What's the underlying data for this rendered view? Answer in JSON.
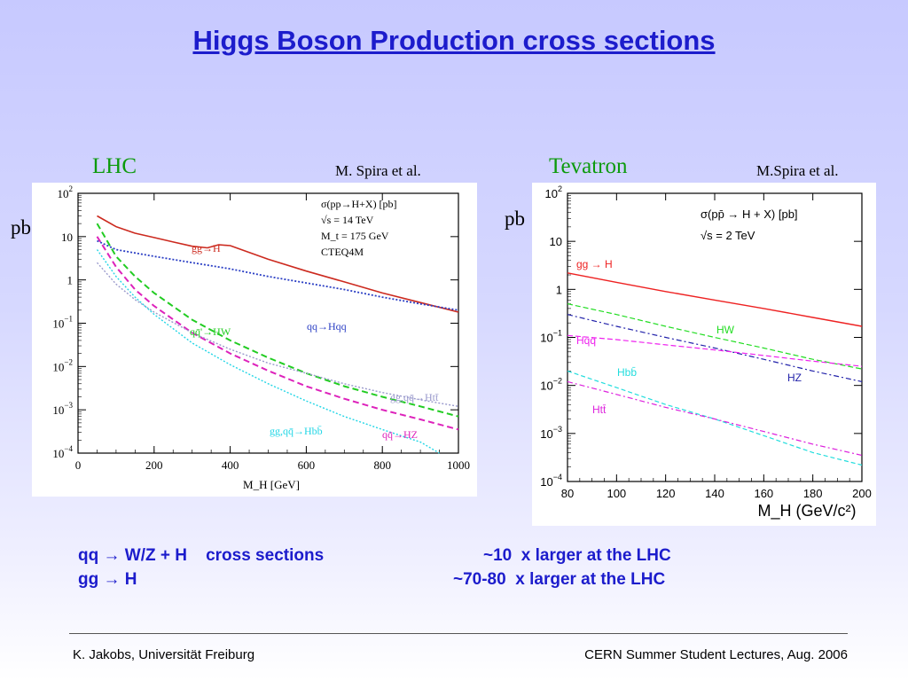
{
  "title": "Higgs Boson Production cross sections",
  "lhc": {
    "label": "LHC",
    "author": "M. Spira et al.",
    "ylabel": "pb"
  },
  "tevatron": {
    "label": "Tevatron",
    "author": "M.Spira et al.",
    "ylabel": "pb"
  },
  "bullets": [
    {
      "left": "qq → W/Z + H    cross sections",
      "right": "~10  x larger at the LHC"
    },
    {
      "left": "gg → H",
      "right": "~70-80  x larger at the LHC"
    }
  ],
  "footer": {
    "left": "K. Jakobs,  Universität Freiburg",
    "right": "CERN Summer Student Lectures,  Aug. 2006"
  },
  "colors": {
    "title": "#1c1ccc",
    "labels": "#0c9a0c"
  },
  "chart_data": [
    {
      "type": "line",
      "title": "",
      "xlabel": "M_H [GeV]",
      "ylabel": "pb",
      "xlim": [
        0,
        1000
      ],
      "ylim": [
        0.0001,
        100
      ],
      "yscale": "log",
      "xticks": [
        "0",
        "200",
        "400",
        "600",
        "800",
        "1000"
      ],
      "yticks": [
        "10^-4",
        "10^-3",
        "10^-2",
        "10^-1",
        "1",
        "10",
        "10^2"
      ],
      "info": [
        "σ(pp→H+X) [pb]",
        "√s = 14 TeV",
        "M_t = 175 GeV",
        "CTEQ4M"
      ],
      "series": [
        {
          "name": "gg→H",
          "color": "#cc2a1f",
          "x": [
            50,
            100,
            150,
            200,
            250,
            300,
            340,
            370,
            400,
            500,
            600,
            700,
            800,
            900,
            1000
          ],
          "y": [
            30,
            17,
            12,
            9.5,
            7.5,
            6.0,
            5.5,
            6.5,
            6.2,
            3.0,
            1.6,
            0.9,
            0.5,
            0.3,
            0.18
          ]
        },
        {
          "name": "qq→Hqq",
          "color": "#2a3ec4",
          "x": [
            50,
            100,
            200,
            300,
            400,
            500,
            600,
            700,
            800,
            900,
            1000
          ],
          "y": [
            8,
            5,
            3.5,
            2.5,
            1.8,
            1.2,
            0.85,
            0.6,
            0.4,
            0.28,
            0.2
          ]
        },
        {
          "name": "qq̄'→HW",
          "color": "#22cc22",
          "x": [
            50,
            100,
            150,
            200,
            300,
            400,
            500,
            600,
            700,
            800,
            900,
            1000
          ],
          "y": [
            20,
            3.5,
            1.2,
            0.5,
            0.12,
            0.04,
            0.016,
            0.007,
            0.0035,
            0.002,
            0.0012,
            0.0007
          ]
        },
        {
          "name": "qq̄→HZ",
          "color": "#dd22bb",
          "x": [
            50,
            100,
            150,
            200,
            300,
            400,
            500,
            600,
            700,
            800,
            900,
            1000
          ],
          "y": [
            10,
            2,
            0.6,
            0.25,
            0.06,
            0.02,
            0.008,
            0.0035,
            0.0018,
            0.001,
            0.0006,
            0.00035
          ]
        },
        {
          "name": "gg,qq̄→Htt̄",
          "color": "#9999cc",
          "x": [
            50,
            100,
            150,
            200,
            300,
            400,
            500,
            600,
            700,
            800,
            900,
            1000
          ],
          "y": [
            2.5,
            0.8,
            0.35,
            0.18,
            0.06,
            0.025,
            0.012,
            0.007,
            0.004,
            0.0025,
            0.0017,
            0.0012
          ]
        },
        {
          "name": "gg,qq̄→Hbb̄",
          "color": "#22d6e6",
          "x": [
            50,
            100,
            150,
            200,
            300,
            400,
            500,
            600,
            700,
            800,
            900,
            950
          ],
          "y": [
            5,
            1.2,
            0.4,
            0.16,
            0.035,
            0.011,
            0.004,
            0.0016,
            0.0007,
            0.00035,
            0.00018,
            0.0001
          ]
        }
      ]
    },
    {
      "type": "line",
      "title": "",
      "xlabel": "M_H (GeV/c²)",
      "ylabel": "pb",
      "xlim": [
        80,
        200
      ],
      "ylim": [
        0.0001,
        100
      ],
      "yscale": "log",
      "xticks": [
        "80",
        "100",
        "120",
        "140",
        "160",
        "180",
        "200"
      ],
      "yticks": [
        "10^-4",
        "10^-3",
        "10^-2",
        "10^-1",
        "1",
        "10",
        "10^2"
      ],
      "info": [
        "σ(pp̄ → H + X) [pb]",
        "√s = 2 TeV"
      ],
      "series": [
        {
          "name": "gg → H",
          "color": "#ee2222",
          "x": [
            80,
            100,
            120,
            140,
            160,
            180,
            200
          ],
          "y": [
            2.2,
            1.4,
            0.9,
            0.6,
            0.4,
            0.26,
            0.17
          ]
        },
        {
          "name": "HW",
          "color": "#22dd22",
          "x": [
            80,
            100,
            120,
            140,
            160,
            180,
            200
          ],
          "y": [
            0.5,
            0.3,
            0.17,
            0.1,
            0.06,
            0.035,
            0.022
          ]
        },
        {
          "name": "HZ",
          "color": "#2222aa",
          "x": [
            80,
            100,
            120,
            140,
            160,
            180,
            200
          ],
          "y": [
            0.3,
            0.17,
            0.1,
            0.06,
            0.035,
            0.02,
            0.012
          ]
        },
        {
          "name": "Hqq",
          "color": "#ee22ee",
          "x": [
            80,
            100,
            120,
            140,
            160,
            180,
            200
          ],
          "y": [
            0.11,
            0.09,
            0.07,
            0.055,
            0.042,
            0.032,
            0.025
          ]
        },
        {
          "name": "Hbb̄",
          "color": "#22dddd",
          "x": [
            80,
            100,
            120,
            140,
            160,
            180,
            200
          ],
          "y": [
            0.02,
            0.009,
            0.004,
            0.002,
            0.0009,
            0.0004,
            0.00022
          ]
        },
        {
          "name": "Htt̄",
          "color": "#dd22dd",
          "x": [
            80,
            100,
            120,
            140,
            160,
            180,
            200
          ],
          "y": [
            0.012,
            0.0065,
            0.0035,
            0.002,
            0.0011,
            0.0006,
            0.00035
          ]
        }
      ]
    }
  ]
}
